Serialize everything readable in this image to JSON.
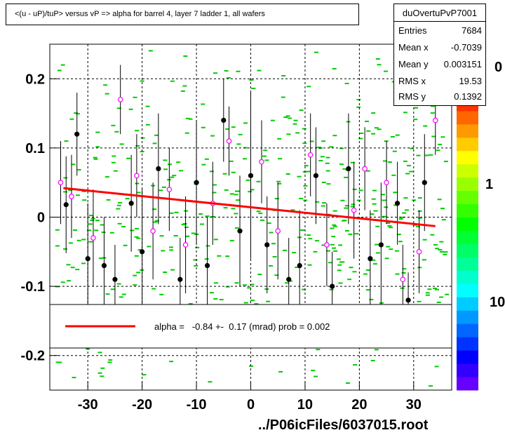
{
  "title": "<(u - uP)/tuP> versus  vP => alpha for barrel 4, layer 7 ladder 1, all wafers",
  "stats": {
    "name": "duOvertuPvP7001",
    "rows": [
      {
        "key": "Entries",
        "value": "7684"
      },
      {
        "key": "Mean x",
        "value": "-0.7039"
      },
      {
        "key": "Mean y",
        "value": "0.003151"
      },
      {
        "key": "RMS x",
        "value": "19.53"
      },
      {
        "key": "RMS y",
        "value": "0.1392"
      }
    ]
  },
  "colz_labels": [
    "0",
    "1",
    "10"
  ],
  "footer": "../P06icFiles/6037015.root",
  "fit_legend": "alpha =   -0.84 +-  0.17 (mrad) prob = 0.002",
  "colors": {
    "fit_line": "#ff0000",
    "histogram_cells": "#00cc00",
    "profile_points": "#000000",
    "alt_points": "#ff00ff"
  },
  "chart_data": {
    "type": "scatter",
    "xlim": [
      -37,
      37
    ],
    "ylim": [
      -0.25,
      0.25
    ],
    "x_ticks": [
      -30,
      -20,
      -10,
      0,
      10,
      20,
      30
    ],
    "x_tick_labels": [
      "-30",
      "-20",
      "-10",
      "0",
      "10",
      "20",
      "30"
    ],
    "y_ticks": [
      -0.2,
      -0.1,
      0,
      0.1,
      0.2
    ],
    "y_tick_labels": [
      "-0.2",
      "-0.1",
      "0",
      "0.1",
      "0.2"
    ],
    "grid": true,
    "fit_line": {
      "x": [
        -34.5,
        34
      ],
      "y": [
        0.042,
        -0.013
      ]
    },
    "profile_points": [
      {
        "x": -34,
        "y": 0.018,
        "err": 0.07
      },
      {
        "x": -32,
        "y": 0.12,
        "err": 0.06
      },
      {
        "x": -30,
        "y": -0.06,
        "err": 0.08
      },
      {
        "x": -27,
        "y": -0.07,
        "err": 0.07
      },
      {
        "x": -25,
        "y": -0.09,
        "err": 0.05
      },
      {
        "x": -22,
        "y": 0.02,
        "err": 0.07
      },
      {
        "x": -20,
        "y": -0.05,
        "err": 0.09
      },
      {
        "x": -17,
        "y": 0.07,
        "err": 0.08
      },
      {
        "x": -13,
        "y": -0.09,
        "err": 0.06
      },
      {
        "x": -10,
        "y": 0.05,
        "err": 0.09
      },
      {
        "x": -8,
        "y": -0.07,
        "err": 0.07
      },
      {
        "x": -5,
        "y": 0.14,
        "err": 0.06
      },
      {
        "x": -2,
        "y": -0.02,
        "err": 0.08
      },
      {
        "x": 0,
        "y": 0.06,
        "err": 0.12
      },
      {
        "x": 3,
        "y": -0.04,
        "err": 0.07
      },
      {
        "x": 7,
        "y": -0.09,
        "err": 0.06
      },
      {
        "x": 9,
        "y": -0.07,
        "err": 0.08
      },
      {
        "x": 12,
        "y": 0.06,
        "err": 0.07
      },
      {
        "x": 15,
        "y": -0.1,
        "err": 0.05
      },
      {
        "x": 18,
        "y": 0.07,
        "err": 0.08
      },
      {
        "x": 22,
        "y": -0.06,
        "err": 0.07
      },
      {
        "x": 24,
        "y": -0.04,
        "err": 0.09
      },
      {
        "x": 27,
        "y": 0.02,
        "err": 0.06
      },
      {
        "x": 29,
        "y": -0.12,
        "err": 0.04
      },
      {
        "x": 32,
        "y": 0.05,
        "err": 0.07
      }
    ],
    "alt_points": [
      {
        "x": -35,
        "y": 0.05,
        "err": 0.06
      },
      {
        "x": -33,
        "y": 0.03,
        "err": 0.06
      },
      {
        "x": -29,
        "y": -0.03,
        "err": 0.07
      },
      {
        "x": -24,
        "y": 0.17,
        "err": 0.05
      },
      {
        "x": -21,
        "y": 0.06,
        "err": 0.06
      },
      {
        "x": -18,
        "y": -0.02,
        "err": 0.07
      },
      {
        "x": -15,
        "y": 0.04,
        "err": 0.06
      },
      {
        "x": -12,
        "y": -0.04,
        "err": 0.07
      },
      {
        "x": -7,
        "y": 0.02,
        "err": 0.06
      },
      {
        "x": -4,
        "y": 0.11,
        "err": 0.05
      },
      {
        "x": 2,
        "y": 0.08,
        "err": 0.06
      },
      {
        "x": 5,
        "y": -0.02,
        "err": 0.07
      },
      {
        "x": 11,
        "y": 0.09,
        "err": 0.06
      },
      {
        "x": 14,
        "y": -0.04,
        "err": 0.06
      },
      {
        "x": 19,
        "y": 0.01,
        "err": 0.07
      },
      {
        "x": 21,
        "y": 0.07,
        "err": 0.06
      },
      {
        "x": 25,
        "y": 0.05,
        "err": 0.06
      },
      {
        "x": 28,
        "y": -0.09,
        "err": 0.05
      },
      {
        "x": 31,
        "y": -0.05,
        "err": 0.06
      },
      {
        "x": 34,
        "y": 0.14,
        "err": 0.05
      }
    ]
  }
}
